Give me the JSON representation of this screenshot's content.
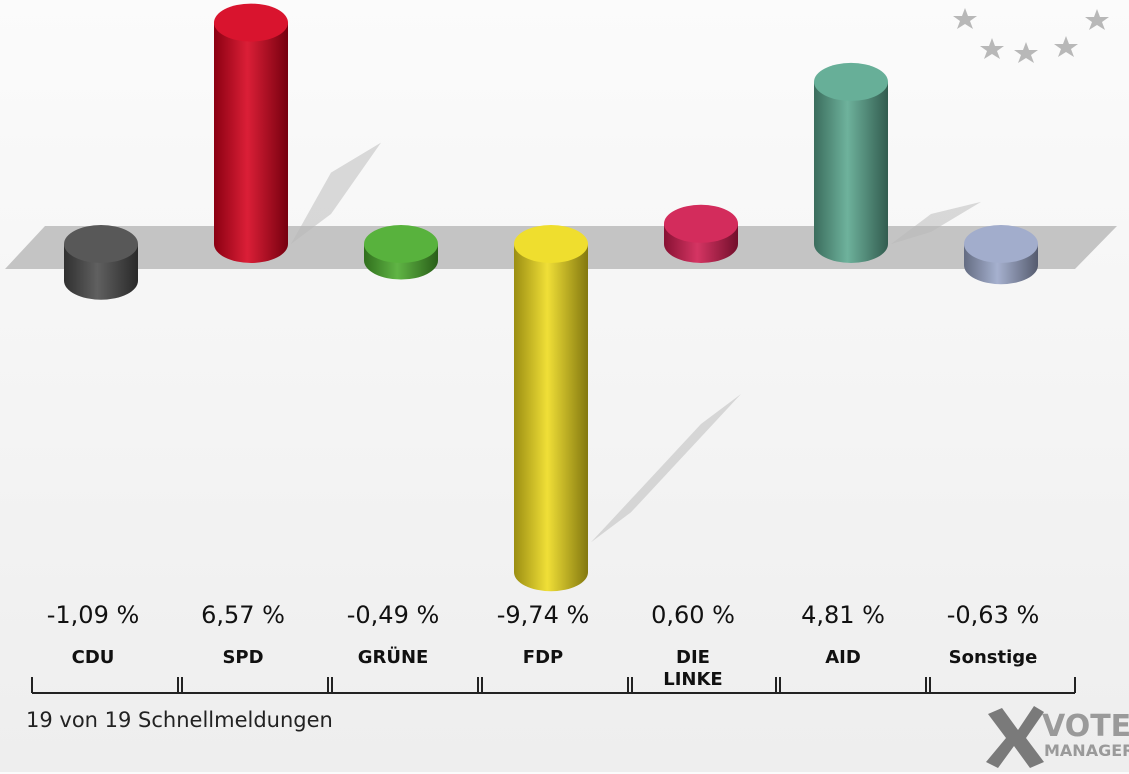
{
  "chart_data": {
    "type": "bar",
    "title": "",
    "xlabel": "",
    "ylabel": "",
    "unit": "%",
    "categories": [
      "CDU",
      "SPD",
      "GRÜNE",
      "FDP",
      "DIE LINKE",
      "AID",
      "Sonstige"
    ],
    "values": [
      -1.09,
      6.57,
      -0.49,
      -9.74,
      0.6,
      4.81,
      -0.63
    ],
    "value_labels": [
      "-1,09 %",
      "6,57 %",
      "-0,49 %",
      "-9,74 %",
      "0,60 %",
      "4,81 %",
      "-0,63 %"
    ],
    "colors": [
      "#4a4a4a",
      "#d6001c",
      "#4aab2c",
      "#eedb1c",
      "#cf1a4e",
      "#5aa88f",
      "#9aa6c8"
    ],
    "grid": false,
    "legend": "none"
  },
  "category_labels": [
    [
      "CDU"
    ],
    [
      "SPD"
    ],
    [
      "GRÜNE"
    ],
    [
      "FDP"
    ],
    [
      "DIE",
      "LINKE"
    ],
    [
      "AID"
    ],
    [
      "Sonstige"
    ]
  ],
  "footer": {
    "note": "19 von 19 Schnellmeldungen",
    "logo_line1": "VOTE",
    "logo_line2": "MANAGER",
    "logo_icon": "ballot-cross-icon",
    "decor_icon": "stars-icon"
  }
}
